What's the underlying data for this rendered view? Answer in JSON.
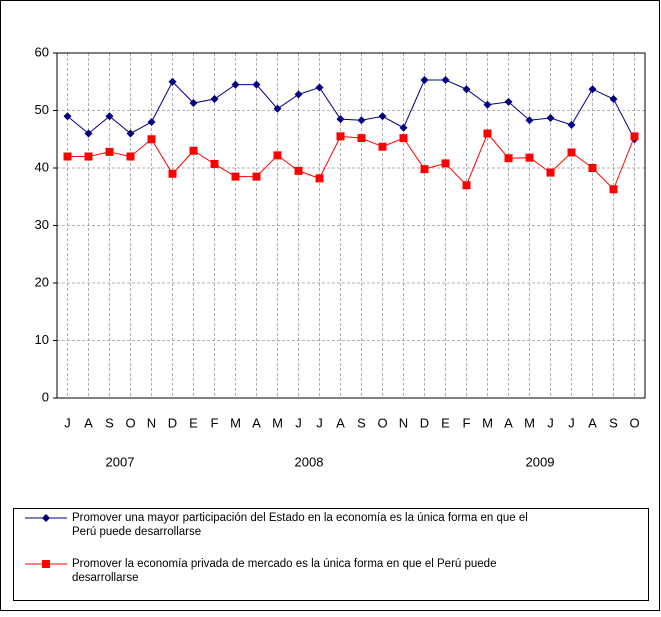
{
  "chart_data": {
    "type": "line",
    "categories": [
      "J",
      "A",
      "S",
      "O",
      "N",
      "D",
      "E",
      "F",
      "M",
      "A",
      "M",
      "J",
      "J",
      "A",
      "S",
      "O",
      "N",
      "D",
      "E",
      "F",
      "M",
      "A",
      "M",
      "J",
      "J",
      "A",
      "S",
      "O"
    ],
    "years": [
      "2007",
      "2008",
      "2009"
    ],
    "series": [
      {
        "name": "Promover una mayor participación del Estado en la economía es la única forma en que el Perú puede desarrollarse",
        "color": "#000080",
        "marker": "diamond",
        "values": [
          49,
          46,
          49,
          46,
          48,
          55,
          51.3,
          52,
          54.5,
          54.5,
          50.3,
          52.8,
          54,
          48.5,
          48.3,
          49,
          47,
          55.3,
          55.3,
          53.7,
          51,
          51.5,
          48.3,
          48.7,
          47.5,
          53.7,
          52,
          45
        ]
      },
      {
        "name": "Promover la economía privada de mercado es la única forma en que el Perú puede desarrollarse",
        "color": "#ff0000",
        "marker": "square",
        "values": [
          42,
          42,
          42.8,
          42,
          45,
          39,
          43,
          40.7,
          38.5,
          38.5,
          42.2,
          39.5,
          38.2,
          45.5,
          45.2,
          43.7,
          45.2,
          39.8,
          40.8,
          37,
          46,
          41.7,
          41.8,
          39.2,
          42.7,
          40,
          36.3,
          45.5
        ]
      }
    ],
    "ylim": [
      0,
      60
    ],
    "yticks": [
      0,
      10,
      20,
      30,
      40,
      50,
      60
    ],
    "grid": true
  }
}
